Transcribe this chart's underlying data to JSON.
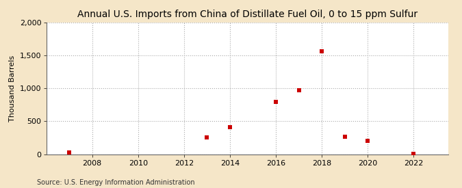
{
  "title": "Annual U.S. Imports from China of Distillate Fuel Oil, 0 to 15 ppm Sulfur",
  "ylabel": "Thousand Barrels",
  "source": "Source: U.S. Energy Information Administration",
  "fig_background_color": "#f5e6c8",
  "plot_background_color": "#ffffff",
  "marker_color": "#cc0000",
  "marker": "s",
  "marker_size": 4,
  "xlim": [
    2006.0,
    2023.5
  ],
  "ylim": [
    0,
    2000
  ],
  "yticks": [
    0,
    500,
    1000,
    1500,
    2000
  ],
  "xticks": [
    2008,
    2010,
    2012,
    2014,
    2016,
    2018,
    2020,
    2022
  ],
  "data": {
    "years": [
      2007,
      2013,
      2014,
      2016,
      2017,
      2018,
      2019,
      2020,
      2022
    ],
    "values": [
      30,
      255,
      415,
      800,
      975,
      1565,
      265,
      205,
      10
    ]
  },
  "grid_color": "#aaaaaa",
  "grid_style": ":",
  "title_fontsize": 10,
  "label_fontsize": 8,
  "tick_fontsize": 8,
  "source_fontsize": 7
}
